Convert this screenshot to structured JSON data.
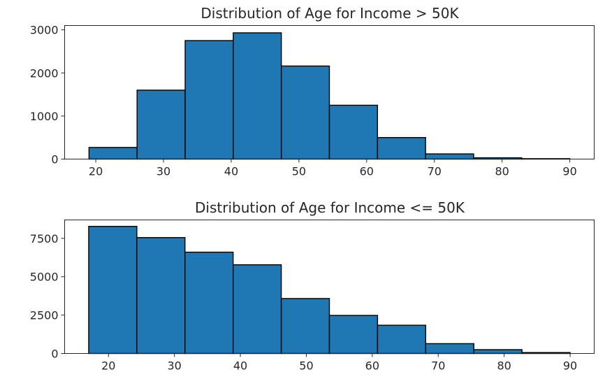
{
  "chart_data": [
    {
      "type": "bar",
      "title": "Distribution of Age for Income > 50K",
      "xlabel": "",
      "ylabel": "",
      "bin_edges": [
        19,
        26.1,
        33.2,
        40.3,
        47.4,
        54.5,
        61.6,
        68.7,
        75.8,
        82.9,
        90
      ],
      "values": [
        270,
        1600,
        2750,
        2930,
        2160,
        1250,
        500,
        120,
        30,
        10
      ],
      "xlim": [
        15.4,
        93.6
      ],
      "ylim": [
        0,
        3100
      ],
      "xticks": [
        20,
        30,
        40,
        50,
        60,
        70,
        80,
        90
      ],
      "yticks": [
        0,
        1000,
        2000,
        3000
      ],
      "color": "#1f77b4",
      "edgecolor": "#000000",
      "grid": false
    },
    {
      "type": "bar",
      "title": "Distribution of Age for Income <= 50K",
      "xlabel": "",
      "ylabel": "",
      "bin_edges": [
        17,
        24.3,
        31.6,
        38.9,
        46.2,
        53.5,
        60.8,
        68.1,
        75.4,
        82.7,
        90
      ],
      "values": [
        8280,
        7550,
        6600,
        5780,
        3580,
        2480,
        1840,
        640,
        250,
        60
      ],
      "xlim": [
        13.35,
        93.65
      ],
      "ylim": [
        0,
        8700
      ],
      "xticks": [
        20,
        30,
        40,
        50,
        60,
        70,
        80,
        90
      ],
      "yticks": [
        0,
        2500,
        5000,
        7500
      ],
      "color": "#1f77b4",
      "edgecolor": "#000000",
      "grid": false
    }
  ]
}
